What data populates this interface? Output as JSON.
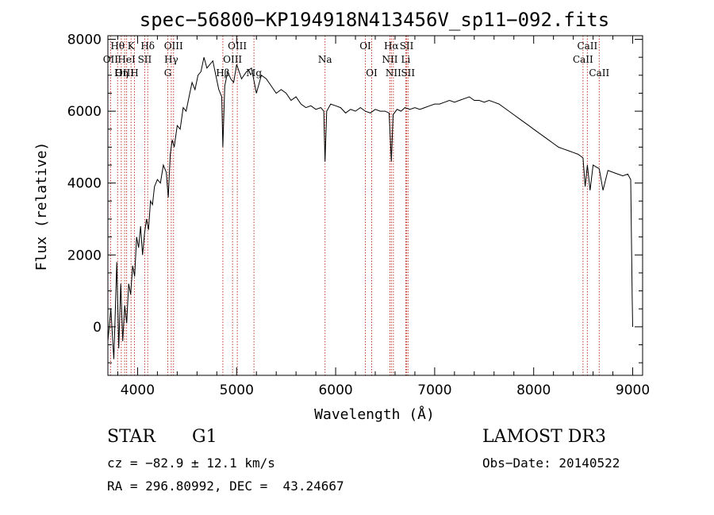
{
  "chart_data": {
    "type": "line",
    "title": "spec−56800−KP194918N413456V_sp11−092.fits",
    "xlabel": "Wavelength (Å)",
    "ylabel": "Flux (relative)",
    "xlim": [
      3700,
      9100
    ],
    "ylim": [
      -1350,
      8100
    ],
    "xticks": [
      4000,
      5000,
      6000,
      7000,
      8000,
      9000
    ],
    "yticks": [
      0,
      2000,
      4000,
      6000,
      8000
    ],
    "grid": false,
    "series": [
      {
        "x": [
          3700,
          3730,
          3760,
          3790,
          3810,
          3830,
          3850,
          3870,
          3890,
          3910,
          3930,
          3950,
          3970,
          3990,
          4010,
          4030,
          4050,
          4070,
          4090,
          4110,
          4130,
          4150,
          4170,
          4200,
          4230,
          4260,
          4290,
          4310,
          4330,
          4350,
          4370,
          4400,
          4430,
          4460,
          4490,
          4520,
          4550,
          4580,
          4610,
          4640,
          4670,
          4700,
          4730,
          4760,
          4790,
          4820,
          4850,
          4861,
          4880,
          4910,
          4940,
          4970,
          5000,
          5050,
          5100,
          5150,
          5200,
          5250,
          5300,
          5350,
          5400,
          5450,
          5500,
          5550,
          5600,
          5650,
          5700,
          5750,
          5800,
          5850,
          5880,
          5893,
          5910,
          5950,
          6000,
          6050,
          6100,
          6150,
          6200,
          6250,
          6300,
          6350,
          6400,
          6450,
          6500,
          6540,
          6563,
          6580,
          6620,
          6660,
          6700,
          6750,
          6800,
          6850,
          6900,
          6950,
          7000,
          7050,
          7100,
          7150,
          7200,
          7250,
          7300,
          7350,
          7400,
          7450,
          7500,
          7550,
          7600,
          7650,
          7700,
          7750,
          7800,
          7850,
          7900,
          7950,
          8000,
          8050,
          8100,
          8150,
          8200,
          8250,
          8300,
          8350,
          8400,
          8450,
          8498,
          8520,
          8542,
          8570,
          8600,
          8630,
          8662,
          8700,
          8750,
          8800,
          8850,
          8900,
          8950,
          8980,
          8995,
          9000
        ],
        "y": [
          -400,
          500,
          -900,
          1800,
          -600,
          1200,
          -400,
          600,
          100,
          1200,
          900,
          1700,
          1400,
          2500,
          2200,
          2800,
          2000,
          2600,
          3000,
          2700,
          3500,
          3400,
          3900,
          4100,
          4000,
          4500,
          4300,
          3600,
          4800,
          5200,
          5000,
          5600,
          5500,
          6100,
          6000,
          6400,
          6800,
          6600,
          7000,
          7100,
          7500,
          7200,
          7300,
          7400,
          7000,
          6600,
          6400,
          5000,
          6700,
          7100,
          6900,
          6800,
          7300,
          6900,
          7100,
          7200,
          6500,
          7000,
          6900,
          6700,
          6500,
          6600,
          6500,
          6300,
          6400,
          6200,
          6100,
          6150,
          6050,
          6100,
          6000,
          4600,
          6000,
          6200,
          6150,
          6100,
          5950,
          6050,
          6000,
          6100,
          6000,
          5950,
          6050,
          6000,
          6000,
          5950,
          4600,
          5900,
          6050,
          6000,
          6100,
          6050,
          6100,
          6050,
          6100,
          6150,
          6200,
          6200,
          6250,
          6300,
          6250,
          6300,
          6350,
          6400,
          6300,
          6300,
          6250,
          6300,
          6250,
          6200,
          6100,
          6000,
          5900,
          5800,
          5700,
          5600,
          5500,
          5400,
          5300,
          5200,
          5100,
          5000,
          4950,
          4900,
          4850,
          4800,
          4700,
          3900,
          4500,
          3800,
          4500,
          4450,
          4400,
          3800,
          4350,
          4300,
          4250,
          4200,
          4250,
          4100,
          800,
          0
        ]
      }
    ],
    "lines": [
      {
        "label": "Hθ",
        "wave": 3798,
        "row": 0
      },
      {
        "label": "OII",
        "wave": 3727,
        "row": 1
      },
      {
        "label": "OIII",
        "wave": 3869,
        "row": 2
      },
      {
        "label": "K",
        "wave": 3934,
        "row": 0
      },
      {
        "label": "HeI",
        "wave": 3889,
        "row": 1
      },
      {
        "label": "Hη",
        "wave": 3835,
        "row": 2
      },
      {
        "label": "H",
        "wave": 3968,
        "row": 2
      },
      {
        "label": "SII",
        "wave": 4072,
        "row": 1
      },
      {
        "label": "Hδ",
        "wave": 4102,
        "row": 0
      },
      {
        "label": "OIII",
        "wave": 4363,
        "row": 0
      },
      {
        "label": "Hγ",
        "wave": 4340,
        "row": 1
      },
      {
        "label": "G",
        "wave": 4305,
        "row": 2
      },
      {
        "label": "Hβ",
        "wave": 4861,
        "row": 2
      },
      {
        "label": "OIII",
        "wave": 4959,
        "row": 1
      },
      {
        "label": "OIII",
        "wave": 5007,
        "row": 0
      },
      {
        "label": "Mg",
        "wave": 5175,
        "row": 2
      },
      {
        "label": "Na",
        "wave": 5893,
        "row": 1
      },
      {
        "label": "OI",
        "wave": 6300,
        "row": 0
      },
      {
        "label": "OI",
        "wave": 6364,
        "row": 2
      },
      {
        "label": "Hα",
        "wave": 6563,
        "row": 0
      },
      {
        "label": "NII",
        "wave": 6548,
        "row": 1
      },
      {
        "label": "NII",
        "wave": 6583,
        "row": 2
      },
      {
        "label": "SII",
        "wave": 6717,
        "row": 0
      },
      {
        "label": "Li",
        "wave": 6708,
        "row": 1
      },
      {
        "label": "SII",
        "wave": 6731,
        "row": 2
      },
      {
        "label": "CaII",
        "wave": 8542,
        "row": 0
      },
      {
        "label": "CaII",
        "wave": 8498,
        "row": 1
      },
      {
        "label": "CaII",
        "wave": 8662,
        "row": 2
      }
    ]
  },
  "info": {
    "object_class": "STAR",
    "subclass": "G1",
    "survey": "LAMOST DR3",
    "cz": "cz = −82.9 ± 12.1 km/s",
    "obs_date": "Obs−Date: 20140522",
    "coords": "RA = 296.80992, DEC =  43.24667"
  },
  "colors": {
    "spectrum": "#000000",
    "line_markers": "#c0392b",
    "text": "#000000"
  }
}
